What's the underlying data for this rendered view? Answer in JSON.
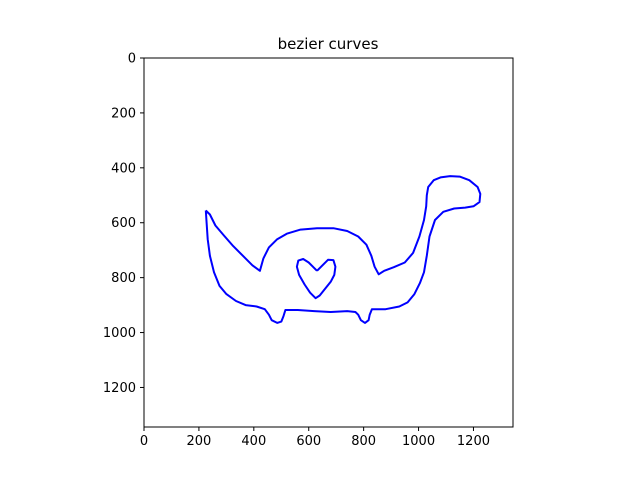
{
  "chart_data": {
    "type": "line",
    "title": "bezier curves",
    "xlabel": "",
    "ylabel": "",
    "xlim": [
      0,
      1344
    ],
    "ylim": [
      1344,
      0
    ],
    "y_inverted": true,
    "grid": false,
    "x_ticks": [
      0,
      200,
      400,
      600,
      800,
      1000,
      1200
    ],
    "y_ticks": [
      0,
      200,
      400,
      600,
      800,
      1000,
      1200
    ],
    "series": [
      {
        "color": "#0000ff",
        "points": [
          [
            225,
            555
          ],
          [
            228,
            600
          ],
          [
            232,
            660
          ],
          [
            240,
            720
          ],
          [
            255,
            780
          ],
          [
            275,
            830
          ],
          [
            300,
            860
          ],
          [
            335,
            885
          ],
          [
            370,
            900
          ],
          [
            410,
            905
          ],
          [
            440,
            915
          ],
          [
            455,
            935
          ],
          [
            465,
            955
          ],
          [
            485,
            965
          ],
          [
            500,
            960
          ],
          [
            508,
            940
          ],
          [
            515,
            918
          ],
          [
            560,
            918
          ],
          [
            620,
            922
          ],
          [
            680,
            925
          ],
          [
            740,
            922
          ],
          [
            770,
            925
          ],
          [
            780,
            935
          ],
          [
            790,
            955
          ],
          [
            805,
            965
          ],
          [
            818,
            955
          ],
          [
            822,
            935
          ],
          [
            830,
            915
          ],
          [
            880,
            915
          ],
          [
            930,
            905
          ],
          [
            960,
            890
          ],
          [
            985,
            860
          ],
          [
            1005,
            820
          ],
          [
            1020,
            780
          ],
          [
            1030,
            720
          ],
          [
            1040,
            650
          ],
          [
            1060,
            590
          ],
          [
            1090,
            560
          ],
          [
            1130,
            548
          ],
          [
            1170,
            545
          ],
          [
            1200,
            540
          ],
          [
            1222,
            525
          ],
          [
            1225,
            495
          ],
          [
            1215,
            470
          ],
          [
            1185,
            445
          ],
          [
            1150,
            432
          ],
          [
            1115,
            430
          ],
          [
            1080,
            435
          ],
          [
            1055,
            445
          ],
          [
            1035,
            470
          ],
          [
            1030,
            500
          ],
          [
            1028,
            540
          ],
          [
            1020,
            590
          ],
          [
            1003,
            650
          ],
          [
            980,
            710
          ],
          [
            950,
            745
          ],
          [
            910,
            762
          ],
          [
            875,
            775
          ],
          [
            855,
            788
          ],
          [
            840,
            760
          ],
          [
            828,
            720
          ],
          [
            810,
            680
          ],
          [
            780,
            650
          ],
          [
            740,
            630
          ],
          [
            690,
            620
          ],
          [
            630,
            620
          ],
          [
            570,
            625
          ],
          [
            520,
            640
          ],
          [
            485,
            660
          ],
          [
            455,
            690
          ],
          [
            435,
            730
          ],
          [
            422,
            775
          ],
          [
            395,
            755
          ],
          [
            360,
            720
          ],
          [
            325,
            685
          ],
          [
            290,
            645
          ],
          [
            260,
            610
          ],
          [
            240,
            570
          ],
          [
            225,
            555
          ]
        ]
      },
      {
        "color": "#0000ff",
        "points": [
          [
            630,
            775
          ],
          [
            615,
            760
          ],
          [
            600,
            745
          ],
          [
            580,
            732
          ],
          [
            562,
            738
          ],
          [
            557,
            760
          ],
          [
            565,
            790
          ],
          [
            585,
            825
          ],
          [
            605,
            855
          ],
          [
            625,
            875
          ],
          [
            640,
            865
          ],
          [
            660,
            840
          ],
          [
            680,
            815
          ],
          [
            693,
            790
          ],
          [
            697,
            760
          ],
          [
            690,
            736
          ],
          [
            670,
            735
          ],
          [
            650,
            755
          ],
          [
            630,
            775
          ]
        ]
      }
    ]
  }
}
